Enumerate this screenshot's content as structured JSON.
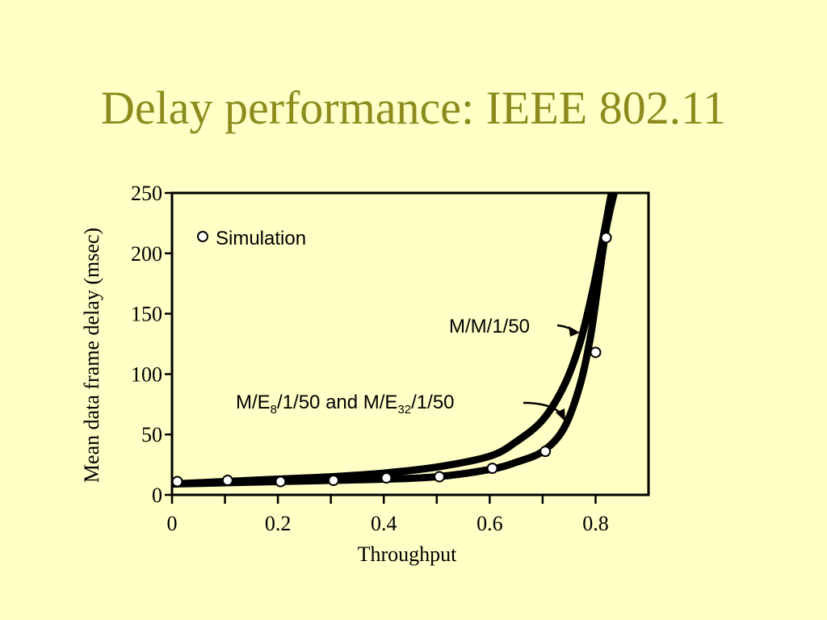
{
  "title": "Delay performance: IEEE 802.11",
  "chart_data": {
    "type": "line",
    "xlabel": "Throughput",
    "ylabel": "Mean data frame delay (msec)",
    "xlim": [
      0,
      0.9
    ],
    "ylim": [
      0,
      250
    ],
    "x_ticks": [
      0,
      0.2,
      0.4,
      0.6,
      0.8
    ],
    "x_tick_labels": [
      "0",
      "0.2",
      "0.4",
      "0.6",
      "0.8"
    ],
    "x_minor_ticks": [
      0.1,
      0.3,
      0.5,
      0.7
    ],
    "y_ticks": [
      0,
      50,
      100,
      150,
      200,
      250
    ],
    "y_tick_labels": [
      "0",
      "50",
      "100",
      "150",
      "200",
      "250"
    ],
    "grid": false,
    "series": [
      {
        "name": "M/M/1/50",
        "x": [
          0,
          0.1,
          0.2,
          0.3,
          0.4,
          0.5,
          0.6,
          0.65,
          0.7,
          0.74,
          0.77,
          0.795,
          0.815,
          0.83
        ],
        "y": [
          9,
          11,
          13,
          15,
          18,
          23,
          32,
          44,
          62,
          90,
          125,
          170,
          215,
          250
        ]
      },
      {
        "name": "M/E8/1/50 and M/E32/1/50",
        "x": [
          0,
          0.1,
          0.2,
          0.3,
          0.4,
          0.5,
          0.6,
          0.65,
          0.7,
          0.74,
          0.77,
          0.79,
          0.805,
          0.82,
          0.835
        ],
        "y": [
          9,
          10,
          11,
          12,
          13,
          15,
          21,
          27,
          36,
          55,
          90,
          130,
          175,
          220,
          250
        ]
      },
      {
        "name": "Simulation",
        "marker": "circle",
        "x": [
          0.01,
          0.105,
          0.205,
          0.305,
          0.405,
          0.505,
          0.605,
          0.705,
          0.8,
          0.82
        ],
        "y": [
          11,
          12,
          11,
          12,
          14,
          15,
          22,
          36,
          118,
          213
        ]
      }
    ],
    "legend": {
      "label": "Simulation",
      "position": "top-left"
    },
    "annotations": {
      "mm150": "M/M/1/50",
      "me_prefix": "M/E",
      "me_sub8": "8",
      "me_mid": "/1/50 and M/E",
      "me_sub32": "32",
      "me_suffix": "/1/50"
    }
  }
}
